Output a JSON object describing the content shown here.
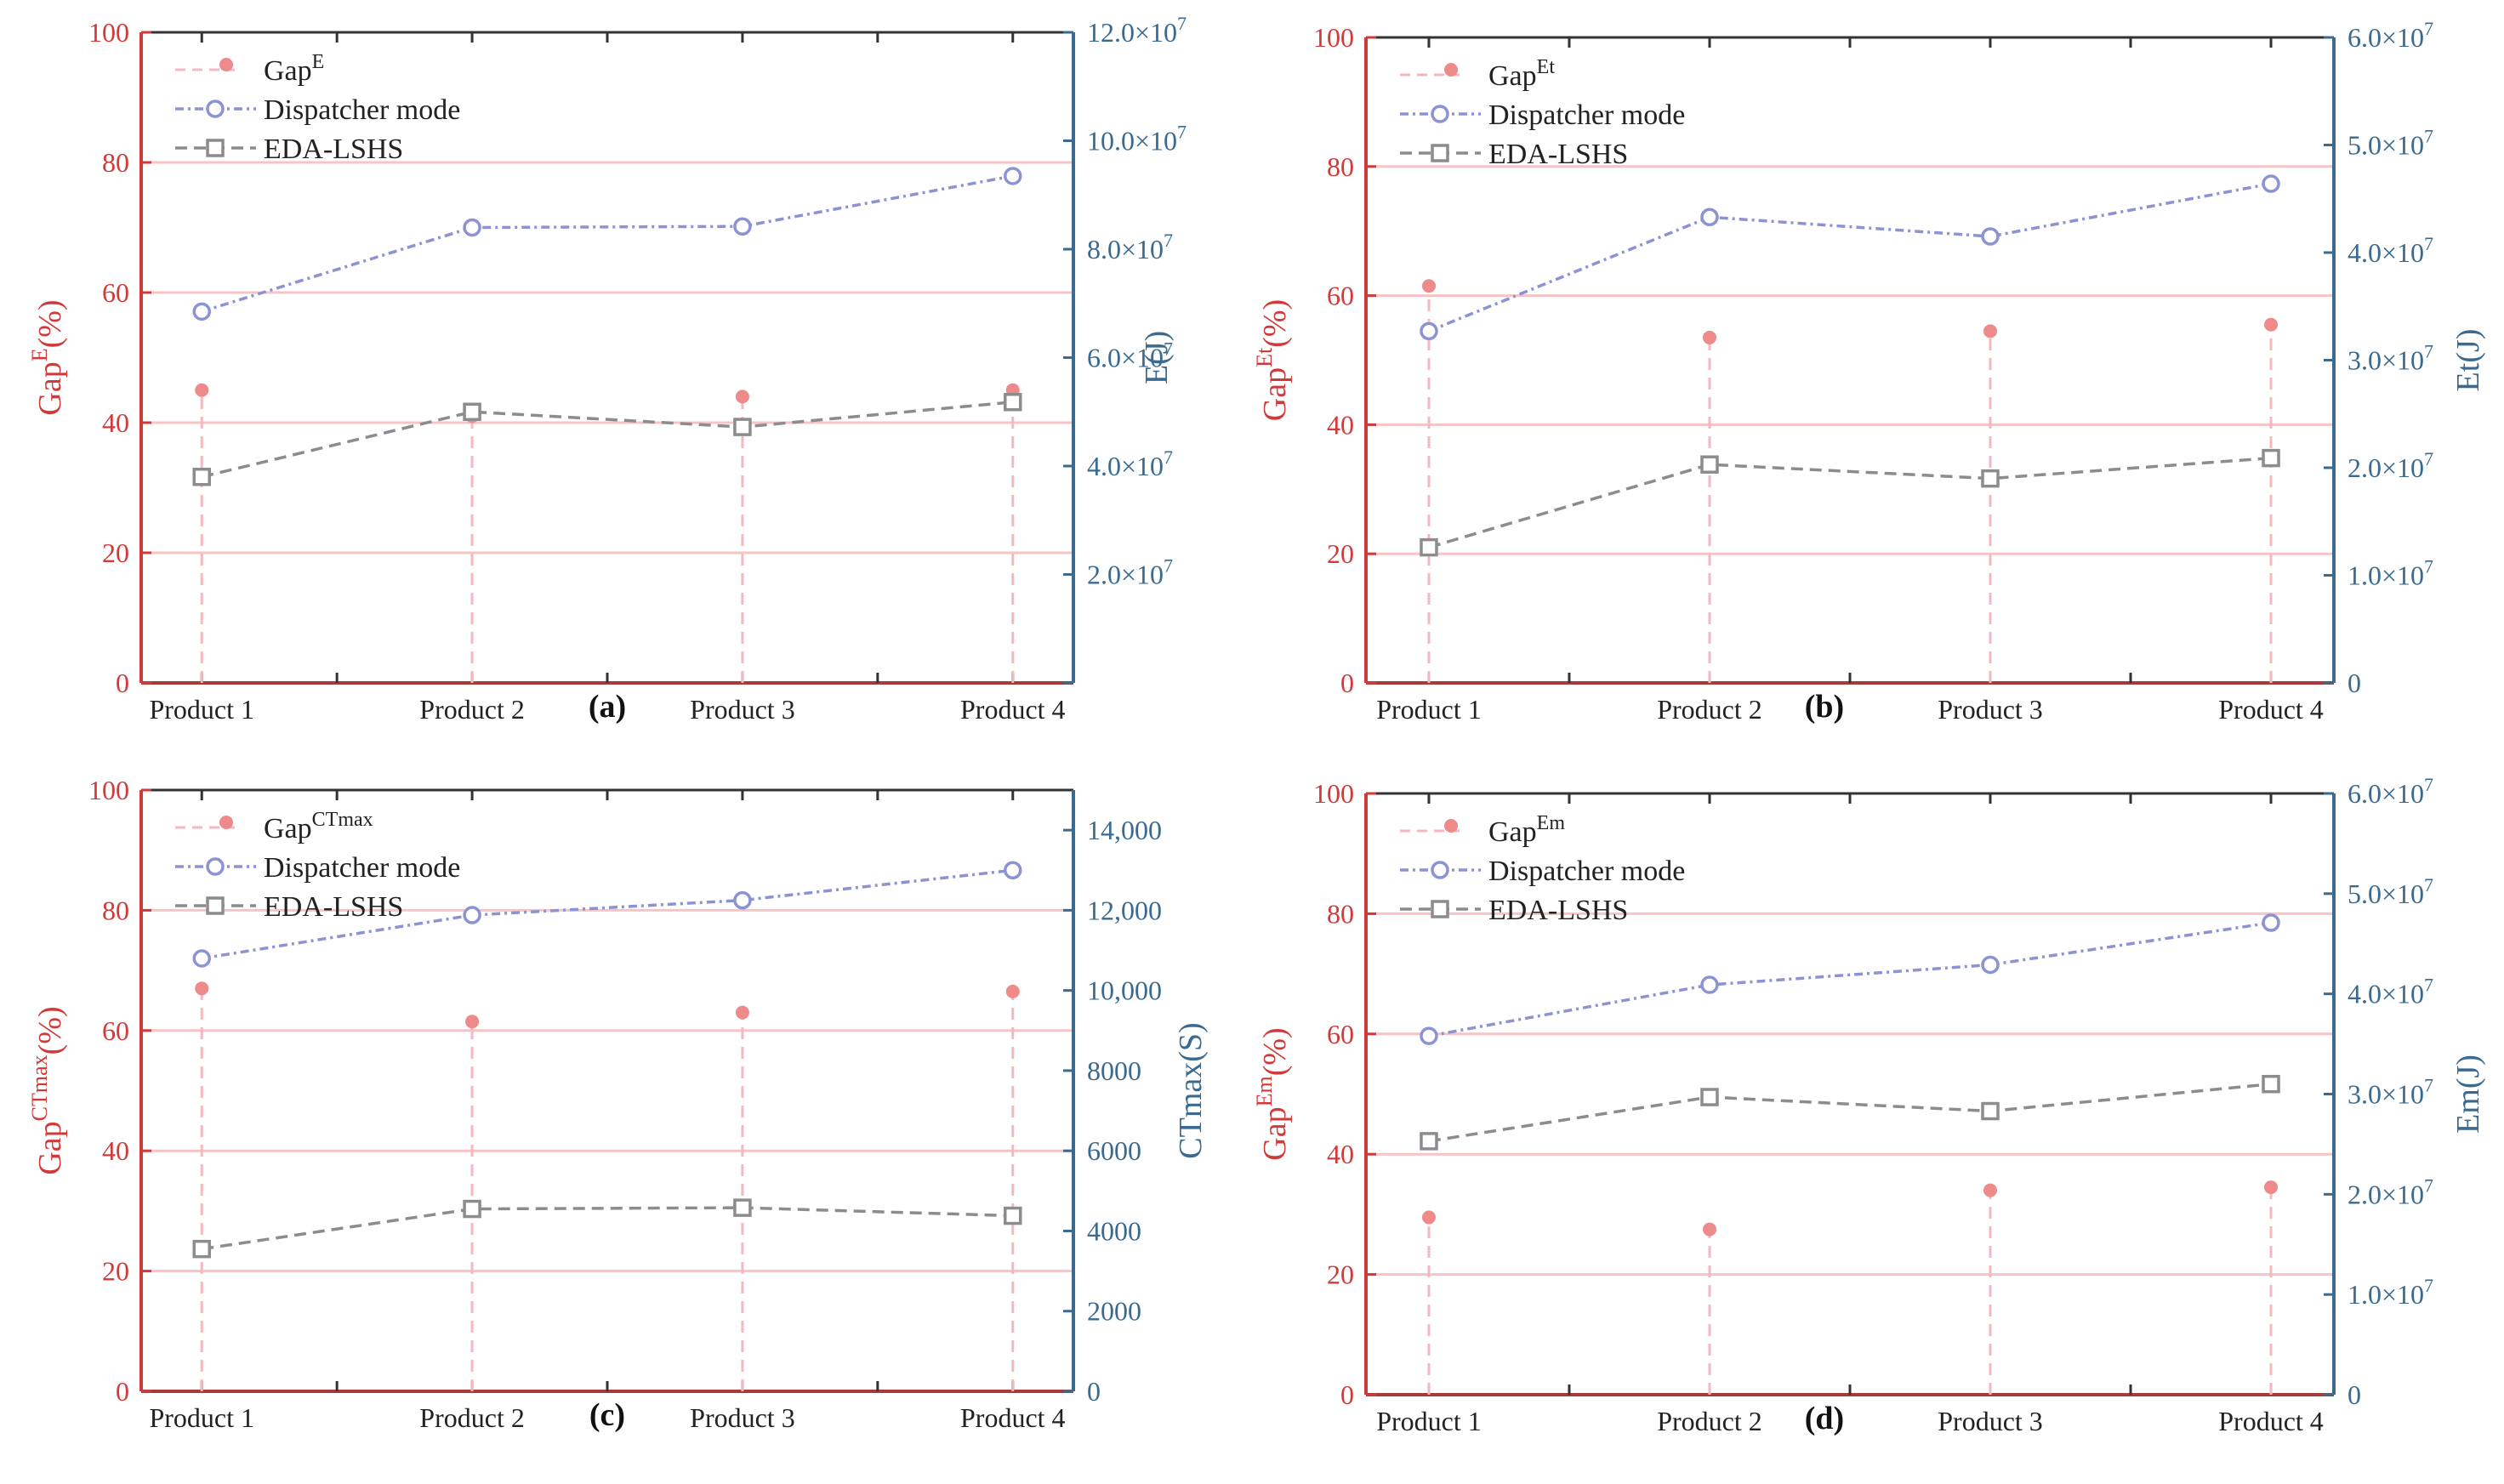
{
  "figure": {
    "colors": {
      "left_axis": "#d03a3a",
      "right_axis": "#3a6a8f",
      "gap": "#ee8a8a",
      "gap_stem": "#f3b8c0",
      "dispatcher": "#8c93d2",
      "eda": "#8c8c8c",
      "grid": "#f6c4c4"
    }
  },
  "chart_data": [
    {
      "type": "line",
      "panel_label": "(a)",
      "categories": [
        "Product 1",
        "Product 2",
        "Product 3",
        "Product 4"
      ],
      "left_axis": {
        "label_main": "Gap",
        "label_sup": "E",
        "label_suffix": "(%)",
        "range": [
          0,
          100
        ],
        "ticks": [
          0,
          20,
          40,
          60,
          80,
          100
        ],
        "tick_labels": [
          "0",
          "20",
          "40",
          "60",
          "80",
          "100"
        ]
      },
      "right_axis": {
        "label_main": "E(J)",
        "range": [
          0,
          120000000
        ],
        "ticks": [
          0,
          20000000,
          40000000,
          60000000,
          80000000,
          100000000,
          120000000
        ],
        "tick_labels": [
          {
            "m": "",
            "e": ""
          },
          {
            "m": "2.0×10",
            "e": "7"
          },
          {
            "m": "4.0×10",
            "e": "7"
          },
          {
            "m": "6.0×10",
            "e": "7"
          },
          {
            "m": "8.0×10",
            "e": "7"
          },
          {
            "m": "10.0×10",
            "e": "7"
          },
          {
            "m": "12.0×10",
            "e": "7"
          }
        ]
      },
      "legend": [
        {
          "main": "Gap",
          "sup": "E"
        },
        {
          "main": "Dispatcher mode",
          "sup": ""
        },
        {
          "main": "EDA-LSHS",
          "sup": ""
        }
      ],
      "series": [
        {
          "name": "Gap",
          "axis": "left",
          "style": "stem",
          "values": [
            45,
            41,
            44,
            45
          ]
        },
        {
          "name": "Dispatcher mode",
          "axis": "right",
          "style": "line-circle",
          "values": [
            68500000,
            84000000,
            84200000,
            93500000
          ]
        },
        {
          "name": "EDA-LSHS",
          "axis": "right",
          "style": "line-square",
          "values": [
            38000000,
            50000000,
            47200000,
            51800000
          ]
        }
      ]
    },
    {
      "type": "line",
      "panel_label": "(b)",
      "categories": [
        "Product 1",
        "Product 2",
        "Product 3",
        "Product 4"
      ],
      "left_axis": {
        "label_main": "Gap",
        "label_sup": "Et",
        "label_suffix": "(%)",
        "range": [
          0,
          100
        ],
        "ticks": [
          0,
          20,
          40,
          60,
          80,
          100
        ],
        "tick_labels": [
          "0",
          "20",
          "40",
          "60",
          "80",
          "100"
        ]
      },
      "right_axis": {
        "label_main": "Et(J)",
        "range": [
          0,
          60000000
        ],
        "ticks": [
          0,
          10000000,
          20000000,
          30000000,
          40000000,
          50000000,
          60000000
        ],
        "tick_labels": [
          {
            "m": "0",
            "e": ""
          },
          {
            "m": "1.0×10",
            "e": "7"
          },
          {
            "m": "2.0×10",
            "e": "7"
          },
          {
            "m": "3.0×10",
            "e": "7"
          },
          {
            "m": "4.0×10",
            "e": "7"
          },
          {
            "m": "5.0×10",
            "e": "7"
          },
          {
            "m": "6.0×10",
            "e": "7"
          }
        ]
      },
      "legend": [
        {
          "main": "Gap",
          "sup": "Et"
        },
        {
          "main": "Dispatcher mode",
          "sup": ""
        },
        {
          "main": "EDA-LSHS",
          "sup": ""
        }
      ],
      "series": [
        {
          "name": "Gap",
          "axis": "left",
          "style": "stem",
          "values": [
            61.5,
            53.5,
            54.5,
            55.5
          ]
        },
        {
          "name": "Dispatcher mode",
          "axis": "right",
          "style": "line-circle",
          "values": [
            32700000,
            43300000,
            41500000,
            46400000
          ]
        },
        {
          "name": "EDA-LSHS",
          "axis": "right",
          "style": "line-square",
          "values": [
            12600000,
            20300000,
            19000000,
            20900000
          ]
        }
      ]
    },
    {
      "type": "line",
      "panel_label": "(c)",
      "categories": [
        "Product 1",
        "Product 2",
        "Product 3",
        "Product 4"
      ],
      "left_axis": {
        "label_main": "Gap",
        "label_sup": "CTmax",
        "label_suffix": "(%)",
        "range": [
          0,
          100
        ],
        "ticks": [
          0,
          20,
          40,
          60,
          80,
          100
        ],
        "tick_labels": [
          "0",
          "20",
          "40",
          "60",
          "80",
          "100"
        ]
      },
      "right_axis": {
        "label_main": "CTmax(S)",
        "range": [
          0,
          15000
        ],
        "ticks": [
          0,
          2000,
          4000,
          6000,
          8000,
          10000,
          12000,
          14000
        ],
        "tick_labels": [
          {
            "m": "0",
            "e": ""
          },
          {
            "m": "2000",
            "e": ""
          },
          {
            "m": "4000",
            "e": ""
          },
          {
            "m": "6000",
            "e": ""
          },
          {
            "m": "8000",
            "e": ""
          },
          {
            "m": "10,000",
            "e": ""
          },
          {
            "m": "12,000",
            "e": ""
          },
          {
            "m": "14,000",
            "e": ""
          }
        ]
      },
      "legend": [
        {
          "main": "Gap",
          "sup": "CTmax"
        },
        {
          "main": "Dispatcher mode",
          "sup": ""
        },
        {
          "main": "EDA-LSHS",
          "sup": ""
        }
      ],
      "series": [
        {
          "name": "Gap",
          "axis": "left",
          "style": "stem",
          "values": [
            67,
            61.5,
            63,
            66.5
          ]
        },
        {
          "name": "Dispatcher mode",
          "axis": "right",
          "style": "line-circle",
          "values": [
            10800,
            11880,
            12250,
            13000
          ]
        },
        {
          "name": "EDA-LSHS",
          "axis": "right",
          "style": "line-square",
          "values": [
            3550,
            4550,
            4580,
            4380
          ]
        }
      ]
    },
    {
      "type": "line",
      "panel_label": "(d)",
      "categories": [
        "Product 1",
        "Product 2",
        "Product 3",
        "Product 4"
      ],
      "left_axis": {
        "label_main": "Gap",
        "label_sup": "Em",
        "label_suffix": "(%)",
        "range": [
          0,
          100
        ],
        "ticks": [
          0,
          20,
          40,
          60,
          80,
          100
        ],
        "tick_labels": [
          "0",
          "20",
          "40",
          "60",
          "80",
          "100"
        ]
      },
      "right_axis": {
        "label_main": "Em(J)",
        "range": [
          0,
          60000000
        ],
        "ticks": [
          0,
          10000000,
          20000000,
          30000000,
          40000000,
          50000000,
          60000000
        ],
        "tick_labels": [
          {
            "m": "0",
            "e": ""
          },
          {
            "m": "1.0×10",
            "e": "7"
          },
          {
            "m": "2.0×10",
            "e": "7"
          },
          {
            "m": "3.0×10",
            "e": "7"
          },
          {
            "m": "4.0×10",
            "e": "7"
          },
          {
            "m": "5.0×10",
            "e": "7"
          },
          {
            "m": "6.0×10",
            "e": "7"
          }
        ]
      },
      "legend": [
        {
          "main": "Gap",
          "sup": "Em"
        },
        {
          "main": "Dispatcher mode",
          "sup": ""
        },
        {
          "main": "EDA-LSHS",
          "sup": ""
        }
      ],
      "series": [
        {
          "name": "Gap",
          "axis": "left",
          "style": "stem",
          "values": [
            29.5,
            27.5,
            34,
            34.5
          ]
        },
        {
          "name": "Dispatcher mode",
          "axis": "right",
          "style": "line-circle",
          "values": [
            35800000,
            40900000,
            42900000,
            47100000
          ]
        },
        {
          "name": "EDA-LSHS",
          "axis": "right",
          "style": "line-square",
          "values": [
            25300000,
            29700000,
            28300000,
            31000000
          ]
        }
      ]
    }
  ]
}
